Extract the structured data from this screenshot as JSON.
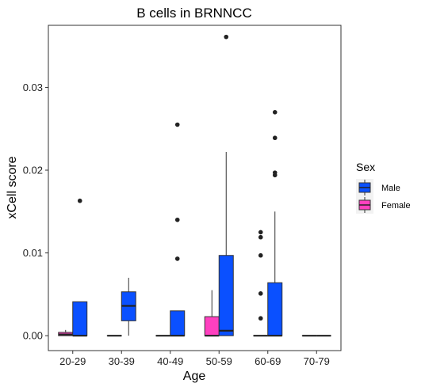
{
  "chart_data": {
    "type": "box",
    "title": "B cells in BRNNCC",
    "xlabel": "Age",
    "ylabel": "xCell score",
    "categories": [
      "20-29",
      "30-39",
      "40-49",
      "50-59",
      "60-69",
      "70-79"
    ],
    "ylim": [
      -0.0018,
      0.0375
    ],
    "yticks": [
      0.0,
      0.01,
      0.02,
      0.03
    ],
    "ytick_labels": [
      "0.00",
      "0.01",
      "0.02",
      "0.03"
    ],
    "grid": false,
    "legend": {
      "title": "Sex",
      "position": "right",
      "entries": [
        {
          "label": "Male",
          "color": "#0A50FF"
        },
        {
          "label": "Female",
          "color": "#FF40C0"
        }
      ]
    },
    "series": [
      {
        "name": "Female",
        "color": "#FF40C0",
        "boxes": [
          {
            "category": "20-29",
            "whislo": 0.0,
            "q1": 0.0,
            "med": 0.00015,
            "q3": 0.0004,
            "whishi": 0.0007,
            "fliers": []
          },
          {
            "category": "30-39",
            "whislo": 0.0,
            "q1": 0.0,
            "med": 0.0,
            "q3": 0.0,
            "whishi": 0.0,
            "fliers": []
          },
          {
            "category": "40-49",
            "whislo": 0.0,
            "q1": 0.0,
            "med": 0.0,
            "q3": 0.0,
            "whishi": 0.0,
            "fliers": []
          },
          {
            "category": "50-59",
            "whislo": 0.0,
            "q1": 0.0,
            "med": 0.0,
            "q3": 0.0023,
            "whishi": 0.0055,
            "fliers": []
          },
          {
            "category": "60-69",
            "whislo": 0.0,
            "q1": 0.0,
            "med": 0.0,
            "q3": 0.0,
            "whishi": 0.0,
            "fliers": [
              0.0021,
              0.0051,
              0.0097,
              0.0119,
              0.0125
            ]
          },
          {
            "category": "70-79",
            "whislo": 0.0,
            "q1": 0.0,
            "med": 0.0,
            "q3": 0.0,
            "whishi": 0.0,
            "fliers": []
          }
        ]
      },
      {
        "name": "Male",
        "color": "#0A50FF",
        "boxes": [
          {
            "category": "20-29",
            "whislo": 0.0,
            "q1": 0.0,
            "med": 0.0,
            "q3": 0.0041,
            "whishi": 0.0041,
            "fliers": [
              0.0163
            ]
          },
          {
            "category": "30-39",
            "whislo": 0.0,
            "q1": 0.0018,
            "med": 0.0036,
            "q3": 0.0053,
            "whishi": 0.007,
            "fliers": []
          },
          {
            "category": "40-49",
            "whislo": 0.0,
            "q1": 0.0,
            "med": 0.0,
            "q3": 0.003,
            "whishi": 0.003,
            "fliers": [
              0.0093,
              0.014,
              0.0255
            ]
          },
          {
            "category": "50-59",
            "whislo": 0.0,
            "q1": 0.0,
            "med": 0.0006,
            "q3": 0.0097,
            "whishi": 0.0222,
            "fliers": [
              0.0361
            ]
          },
          {
            "category": "60-69",
            "whislo": 0.0,
            "q1": 0.0,
            "med": 0.0,
            "q3": 0.0064,
            "whishi": 0.015,
            "fliers": [
              0.0194,
              0.0197,
              0.0239,
              0.027
            ]
          },
          {
            "category": "70-79",
            "whislo": 0.0,
            "q1": 0.0,
            "med": 0.0,
            "q3": 0.0,
            "whishi": 0.0,
            "fliers": []
          }
        ]
      }
    ]
  }
}
